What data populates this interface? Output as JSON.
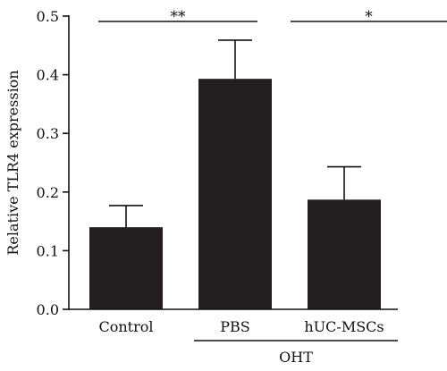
{
  "chart_data": {
    "type": "bar",
    "categories": [
      "Control",
      "PBS",
      "hUC-MSCs"
    ],
    "values": [
      0.14,
      0.393,
      0.187
    ],
    "error_upper": [
      0.177,
      0.459,
      0.243
    ],
    "ylabel": "Relative TLR4 expression",
    "ylim": [
      0,
      0.5
    ],
    "yticks": [
      0.0,
      0.1,
      0.2,
      0.3,
      0.4,
      0.5
    ],
    "ytick_labels": [
      "0.0",
      "0.1",
      "0.2",
      "0.3",
      "0.4",
      "0.5"
    ],
    "group_label": "OHT",
    "group_categories": [
      "PBS",
      "hUC-MSCs"
    ],
    "significance": [
      {
        "from": "Control",
        "to": "PBS",
        "label": "**"
      },
      {
        "from": "PBS",
        "to": "hUC-MSCs",
        "label": "*"
      }
    ],
    "bar_color": "#231f20",
    "grid": false
  }
}
